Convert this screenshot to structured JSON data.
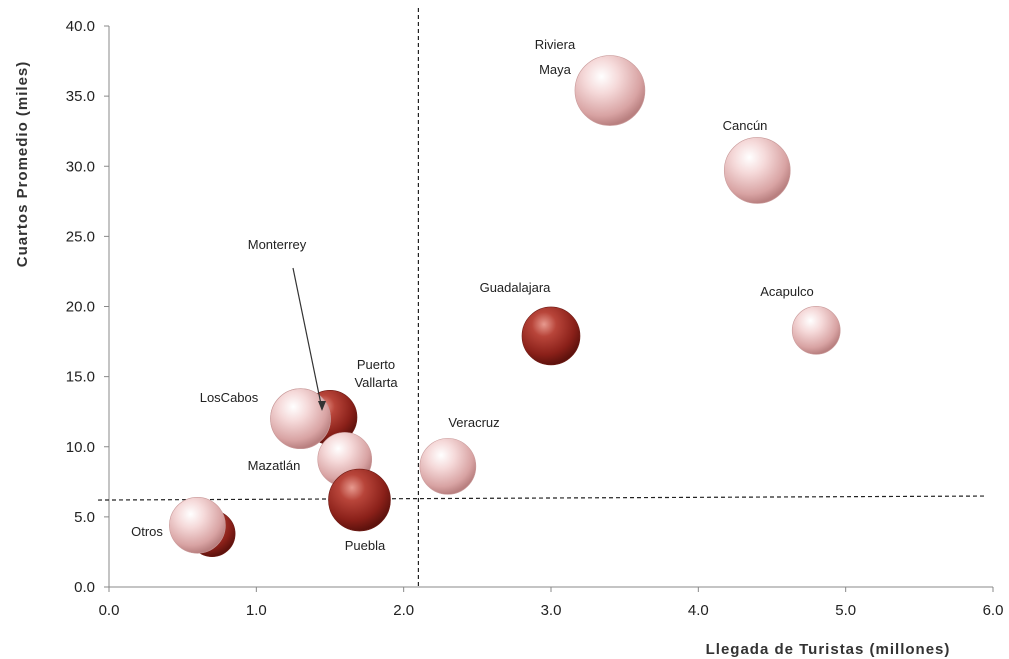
{
  "chart_data": {
    "type": "bubble",
    "xlabel": "Llegada de Turistas (millones)",
    "ylabel": "Cuartos Promedio  (miles)",
    "xlim": [
      0,
      6
    ],
    "ylim": [
      0,
      40
    ],
    "xticks": [
      "0.0",
      "1.0",
      "2.0",
      "3.0",
      "4.0",
      "5.0",
      "6.0"
    ],
    "yticks": [
      "0.0",
      "5.0",
      "10.0",
      "15.0",
      "20.0",
      "25.0",
      "30.0",
      "35.0",
      "40.0"
    ],
    "reference_lines": {
      "x": 2.1,
      "y": 6.2
    },
    "colors": {
      "pink": "#e8b6b6",
      "red": "#9a2a22"
    },
    "points": [
      {
        "label": "Riviera Maya",
        "x": 3.4,
        "y": 35.4,
        "size": 35,
        "color": "pink"
      },
      {
        "label": "Cancún",
        "x": 4.4,
        "y": 29.7,
        "size": 33,
        "color": "pink"
      },
      {
        "label": "Acapulco",
        "x": 4.8,
        "y": 18.3,
        "size": 24,
        "color": "pink"
      },
      {
        "label": "Guadalajara",
        "x": 3.0,
        "y": 17.9,
        "size": 29,
        "color": "red"
      },
      {
        "label": "Veracruz",
        "x": 2.3,
        "y": 8.6,
        "size": 28,
        "color": "pink"
      },
      {
        "label": "Puerto Vallarta",
        "x": 1.5,
        "y": 12.1,
        "size": 27,
        "color": "red"
      },
      {
        "label": "Monterrey",
        "x": 1.3,
        "y": 12.0,
        "size": 30,
        "color": "pink"
      },
      {
        "label": "Los Cabos",
        "x": 1.3,
        "y": 12.0,
        "size": 30,
        "color": "pink"
      },
      {
        "label": "Mazatlán",
        "x": 1.6,
        "y": 9.1,
        "size": 27,
        "color": "pink"
      },
      {
        "label": "Puebla",
        "x": 1.7,
        "y": 6.2,
        "size": 31,
        "color": "red"
      },
      {
        "label": "Otros",
        "x": 0.7,
        "y": 3.8,
        "size": 23,
        "color": "red"
      },
      {
        "label": "Otros",
        "x": 0.6,
        "y": 4.4,
        "size": 28,
        "color": "pink"
      }
    ],
    "labels": [
      {
        "key": "riviera",
        "lines": [
          "Riviera",
          "Maya"
        ]
      },
      {
        "key": "cancun",
        "lines": [
          "Cancún"
        ]
      },
      {
        "key": "acapulco",
        "lines": [
          "Acapulco"
        ]
      },
      {
        "key": "guadalajara",
        "lines": [
          "Guadalajara"
        ]
      },
      {
        "key": "veracruz",
        "lines": [
          "Veracruz"
        ]
      },
      {
        "key": "vallarta",
        "lines": [
          "Puerto",
          "Vallarta"
        ]
      },
      {
        "key": "monterrey",
        "lines": [
          "Monterrey"
        ]
      },
      {
        "key": "loscabos",
        "lines": [
          "LosCabos"
        ]
      },
      {
        "key": "mazatlan",
        "lines": [
          "Mazatlán"
        ]
      },
      {
        "key": "puebla",
        "lines": [
          "Puebla"
        ]
      },
      {
        "key": "otros",
        "lines": [
          "Otros"
        ]
      }
    ]
  }
}
